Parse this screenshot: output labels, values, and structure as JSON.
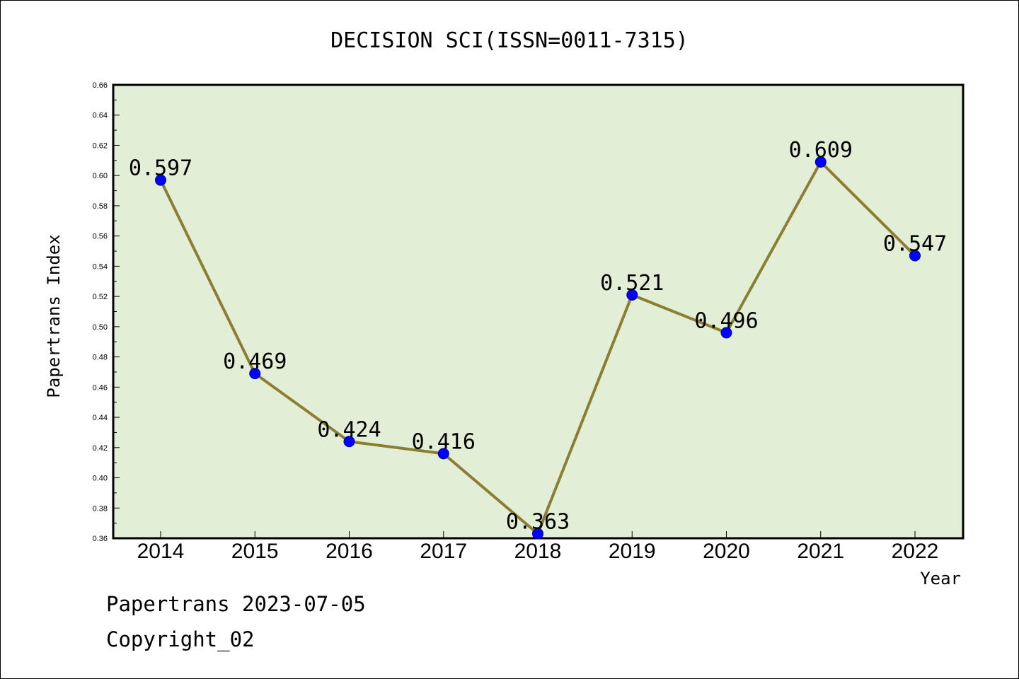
{
  "chart_data": {
    "type": "line",
    "title": "DECISION SCI(ISSN=0011-7315)",
    "xlabel": "Year",
    "ylabel": "Papertrans Index",
    "categories": [
      "2014",
      "2015",
      "2016",
      "2017",
      "2018",
      "2019",
      "2020",
      "2021",
      "2022"
    ],
    "values": [
      0.597,
      0.469,
      0.424,
      0.416,
      0.363,
      0.521,
      0.496,
      0.609,
      0.547
    ],
    "data_labels": [
      "0.597",
      "0.469",
      "0.424",
      "0.416",
      "0.363",
      "0.521",
      "0.496",
      "0.609",
      "0.547"
    ],
    "ylim": [
      0.36,
      0.66
    ],
    "yticks": [
      "0.36",
      "0.38",
      "0.40",
      "0.42",
      "0.44",
      "0.46",
      "0.48",
      "0.50",
      "0.52",
      "0.54",
      "0.56",
      "0.58",
      "0.60",
      "0.62",
      "0.64",
      "0.66"
    ],
    "grid": false,
    "colors": {
      "plot_background": "#e2efd6",
      "line": "#8b7d33",
      "marker": "#0000ff"
    }
  },
  "footer": {
    "line1": "Papertrans 2023-07-05",
    "line2": "Copyright_02"
  }
}
